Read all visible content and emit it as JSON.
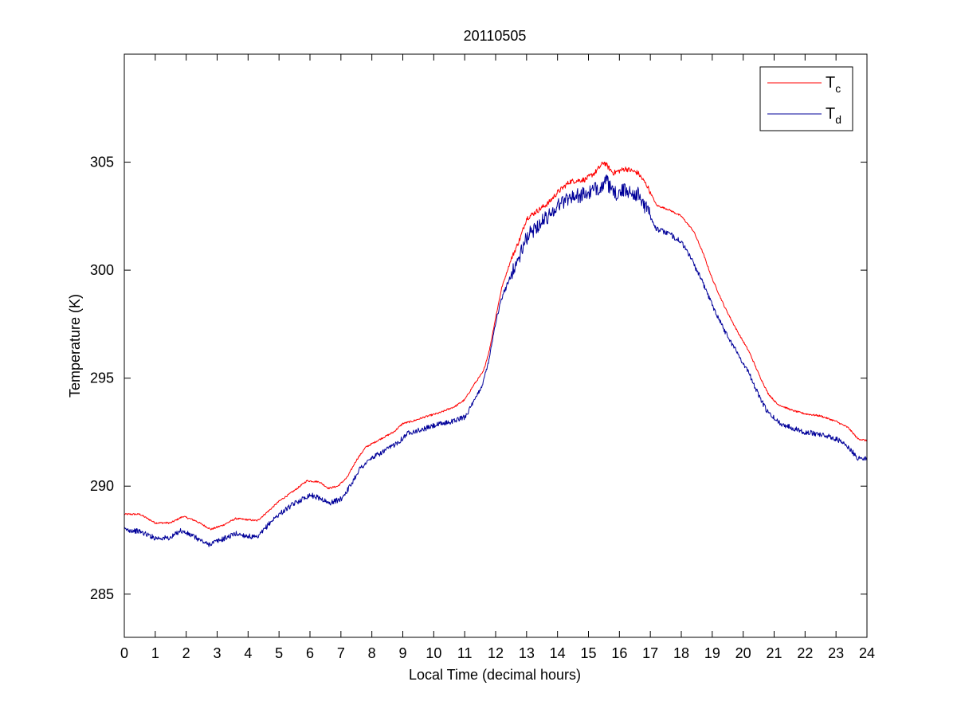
{
  "chart_data": {
    "type": "line",
    "title": "20110505",
    "xlabel": "Local Time (decimal hours)",
    "ylabel": "Temperature (K)",
    "xlim": [
      0,
      24
    ],
    "ylim": [
      283,
      310
    ],
    "xticks": [
      0,
      1,
      2,
      3,
      4,
      5,
      6,
      7,
      8,
      9,
      10,
      11,
      12,
      13,
      14,
      15,
      16,
      17,
      18,
      19,
      20,
      21,
      22,
      23,
      24
    ],
    "yticks": [
      285,
      290,
      295,
      300,
      305
    ],
    "grid": false,
    "legend_position": "top-right",
    "series": [
      {
        "name": "T",
        "subscript": "c",
        "color": "#ff0000",
        "points": [
          [
            0,
            288.7
          ],
          [
            0.5,
            288.7
          ],
          [
            1,
            288.3
          ],
          [
            1.5,
            288.3
          ],
          [
            1.9,
            288.6
          ],
          [
            2.3,
            288.4
          ],
          [
            2.8,
            288.0
          ],
          [
            3.2,
            288.2
          ],
          [
            3.6,
            288.5
          ],
          [
            4.3,
            288.4
          ],
          [
            4.7,
            288.9
          ],
          [
            5.0,
            289.3
          ],
          [
            5.5,
            289.8
          ],
          [
            5.9,
            290.25
          ],
          [
            6.3,
            290.2
          ],
          [
            6.6,
            289.9
          ],
          [
            6.9,
            290.0
          ],
          [
            7.2,
            290.4
          ],
          [
            7.5,
            291.2
          ],
          [
            7.8,
            291.8
          ],
          [
            8.3,
            292.2
          ],
          [
            8.7,
            292.5
          ],
          [
            9.0,
            292.9
          ],
          [
            9.3,
            293.0
          ],
          [
            9.7,
            293.2
          ],
          [
            10.2,
            293.4
          ],
          [
            10.7,
            293.7
          ],
          [
            11.0,
            294.0
          ],
          [
            11.3,
            294.7
          ],
          [
            11.6,
            295.3
          ],
          [
            11.8,
            296.3
          ],
          [
            12.0,
            297.8
          ],
          [
            12.2,
            299.2
          ],
          [
            12.5,
            300.5
          ],
          [
            12.8,
            301.5
          ],
          [
            13.0,
            302.4
          ],
          [
            13.3,
            302.7
          ],
          [
            13.7,
            303.1
          ],
          [
            14.0,
            303.6
          ],
          [
            14.4,
            304.1
          ],
          [
            14.9,
            304.2
          ],
          [
            15.2,
            304.5
          ],
          [
            15.5,
            305.0
          ],
          [
            15.8,
            304.5
          ],
          [
            16.2,
            304.7
          ],
          [
            16.6,
            304.5
          ],
          [
            16.9,
            303.9
          ],
          [
            17.2,
            303.0
          ],
          [
            17.6,
            302.8
          ],
          [
            18.0,
            302.5
          ],
          [
            18.4,
            301.8
          ],
          [
            18.7,
            300.8
          ],
          [
            19.0,
            299.6
          ],
          [
            19.4,
            298.3
          ],
          [
            19.8,
            297.2
          ],
          [
            20.2,
            296.2
          ],
          [
            20.5,
            295.2
          ],
          [
            20.8,
            294.3
          ],
          [
            21.1,
            293.8
          ],
          [
            21.6,
            293.5
          ],
          [
            22.0,
            293.35
          ],
          [
            22.5,
            293.25
          ],
          [
            23.0,
            293.0
          ],
          [
            23.4,
            292.7
          ],
          [
            23.7,
            292.2
          ],
          [
            24.0,
            292.1
          ]
        ]
      },
      {
        "name": "T",
        "subscript": "d",
        "color": "#000099",
        "points": [
          [
            0,
            288.0
          ],
          [
            0.5,
            287.9
          ],
          [
            1.0,
            287.6
          ],
          [
            1.5,
            287.6
          ],
          [
            1.8,
            287.95
          ],
          [
            2.2,
            287.7
          ],
          [
            2.7,
            287.3
          ],
          [
            3.1,
            287.5
          ],
          [
            3.6,
            287.8
          ],
          [
            4.3,
            287.6
          ],
          [
            4.7,
            288.3
          ],
          [
            5.0,
            288.7
          ],
          [
            5.5,
            289.2
          ],
          [
            6.0,
            289.6
          ],
          [
            6.4,
            289.4
          ],
          [
            6.6,
            289.2
          ],
          [
            7.0,
            289.4
          ],
          [
            7.3,
            290.0
          ],
          [
            7.6,
            290.8
          ],
          [
            8.0,
            291.3
          ],
          [
            8.5,
            291.7
          ],
          [
            8.9,
            292.1
          ],
          [
            9.2,
            292.5
          ],
          [
            9.6,
            292.6
          ],
          [
            10.0,
            292.8
          ],
          [
            10.6,
            293.0
          ],
          [
            11.0,
            293.2
          ],
          [
            11.3,
            293.9
          ],
          [
            11.6,
            294.8
          ],
          [
            11.8,
            296.0
          ],
          [
            12.0,
            297.6
          ],
          [
            12.2,
            298.7
          ],
          [
            12.5,
            299.8
          ],
          [
            12.8,
            300.7
          ],
          [
            13.0,
            301.5
          ],
          [
            13.3,
            302.0
          ],
          [
            13.7,
            302.5
          ],
          [
            14.0,
            303.0
          ],
          [
            14.4,
            303.4
          ],
          [
            14.9,
            303.5
          ],
          [
            15.2,
            303.7
          ],
          [
            15.6,
            304.1
          ],
          [
            15.8,
            303.5
          ],
          [
            16.2,
            303.7
          ],
          [
            16.6,
            303.5
          ],
          [
            16.9,
            302.8
          ],
          [
            17.2,
            301.9
          ],
          [
            17.6,
            301.7
          ],
          [
            18.0,
            301.3
          ],
          [
            18.3,
            300.6
          ],
          [
            18.7,
            299.4
          ],
          [
            19.0,
            298.4
          ],
          [
            19.4,
            297.2
          ],
          [
            19.8,
            296.2
          ],
          [
            20.2,
            295.2
          ],
          [
            20.5,
            294.2
          ],
          [
            20.8,
            293.4
          ],
          [
            21.2,
            292.9
          ],
          [
            21.6,
            292.7
          ],
          [
            22.0,
            292.5
          ],
          [
            22.5,
            292.4
          ],
          [
            23.0,
            292.2
          ],
          [
            23.4,
            291.8
          ],
          [
            23.7,
            291.3
          ],
          [
            24.0,
            291.3
          ]
        ]
      }
    ]
  }
}
